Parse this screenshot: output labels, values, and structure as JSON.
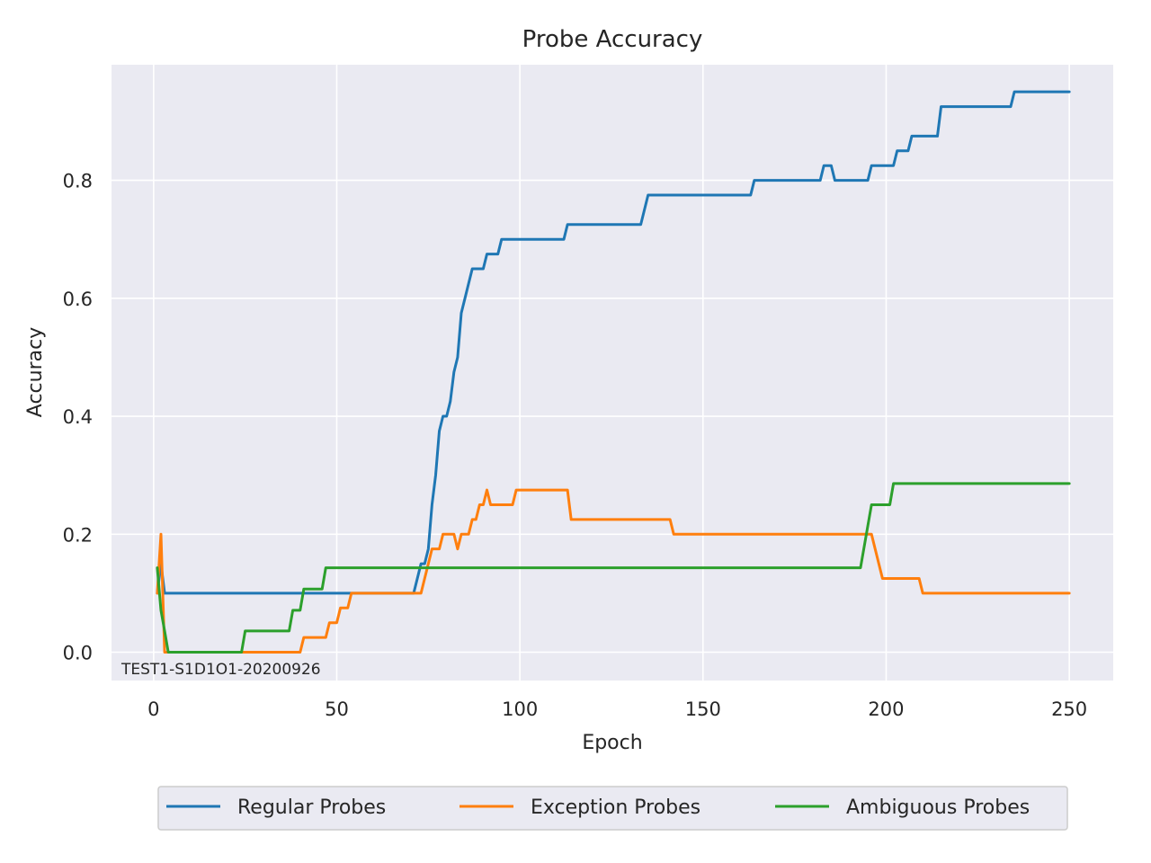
{
  "chart_data": {
    "type": "line",
    "title": "Probe Accuracy",
    "xlabel": "Epoch",
    "ylabel": "Accuracy",
    "xlim": [
      -11.5,
      262
    ],
    "ylim": [
      -0.048,
      0.996
    ],
    "xticks": [
      0,
      50,
      100,
      150,
      200,
      250
    ],
    "yticks": [
      0.0,
      0.2,
      0.4,
      0.6,
      0.8
    ],
    "grid": true,
    "legend_position": "bottom-center",
    "annotation": "TEST1-S1D1O1-20200926",
    "series": [
      {
        "name": "Regular Probes",
        "color": "#1f77b4",
        "points": [
          [
            1,
            0.1
          ],
          [
            2,
            0.15
          ],
          [
            3,
            0.1
          ],
          [
            71,
            0.1
          ],
          [
            72,
            0.125
          ],
          [
            73,
            0.15
          ],
          [
            74,
            0.15
          ],
          [
            75,
            0.175
          ],
          [
            76,
            0.25
          ],
          [
            77,
            0.3
          ],
          [
            78,
            0.375
          ],
          [
            79,
            0.4
          ],
          [
            80,
            0.4
          ],
          [
            81,
            0.425
          ],
          [
            82,
            0.475
          ],
          [
            83,
            0.5
          ],
          [
            84,
            0.575
          ],
          [
            85,
            0.6
          ],
          [
            86,
            0.625
          ],
          [
            87,
            0.65
          ],
          [
            90,
            0.65
          ],
          [
            91,
            0.675
          ],
          [
            94,
            0.675
          ],
          [
            95,
            0.7
          ],
          [
            112,
            0.7
          ],
          [
            113,
            0.725
          ],
          [
            133,
            0.725
          ],
          [
            135,
            0.775
          ],
          [
            163,
            0.775
          ],
          [
            164,
            0.8
          ],
          [
            182,
            0.8
          ],
          [
            183,
            0.825
          ],
          [
            185,
            0.825
          ],
          [
            186,
            0.8
          ],
          [
            195,
            0.8
          ],
          [
            196,
            0.825
          ],
          [
            202,
            0.825
          ],
          [
            203,
            0.85
          ],
          [
            206,
            0.85
          ],
          [
            207,
            0.875
          ],
          [
            214,
            0.875
          ],
          [
            215,
            0.925
          ],
          [
            234,
            0.925
          ],
          [
            235,
            0.95
          ],
          [
            250,
            0.95
          ]
        ]
      },
      {
        "name": "Exception Probes",
        "color": "#ff7f0e",
        "points": [
          [
            1,
            0.1
          ],
          [
            2,
            0.2
          ],
          [
            3,
            0.0
          ],
          [
            40,
            0.0
          ],
          [
            41,
            0.025
          ],
          [
            47,
            0.025
          ],
          [
            48,
            0.05
          ],
          [
            50,
            0.05
          ],
          [
            51,
            0.075
          ],
          [
            53,
            0.075
          ],
          [
            54,
            0.1
          ],
          [
            73,
            0.1
          ],
          [
            74,
            0.125
          ],
          [
            75,
            0.15
          ],
          [
            76,
            0.175
          ],
          [
            78,
            0.175
          ],
          [
            79,
            0.2
          ],
          [
            82,
            0.2
          ],
          [
            83,
            0.175
          ],
          [
            84,
            0.2
          ],
          [
            86,
            0.2
          ],
          [
            87,
            0.225
          ],
          [
            88,
            0.225
          ],
          [
            89,
            0.25
          ],
          [
            90,
            0.25
          ],
          [
            91,
            0.275
          ],
          [
            92,
            0.25
          ],
          [
            98,
            0.25
          ],
          [
            99,
            0.275
          ],
          [
            113,
            0.275
          ],
          [
            114,
            0.225
          ],
          [
            141,
            0.225
          ],
          [
            142,
            0.2
          ],
          [
            196,
            0.2
          ],
          [
            199,
            0.125
          ],
          [
            209,
            0.125
          ],
          [
            210,
            0.1
          ],
          [
            250,
            0.1
          ]
        ]
      },
      {
        "name": "Ambiguous Probes",
        "color": "#2ca02c",
        "points": [
          [
            1,
            0.143
          ],
          [
            2,
            0.071
          ],
          [
            3,
            0.036
          ],
          [
            4,
            0.0
          ],
          [
            24,
            0.0
          ],
          [
            25,
            0.036
          ],
          [
            37,
            0.036
          ],
          [
            38,
            0.071
          ],
          [
            40,
            0.071
          ],
          [
            41,
            0.107
          ],
          [
            46,
            0.107
          ],
          [
            47,
            0.143
          ],
          [
            193,
            0.143
          ],
          [
            196,
            0.25
          ],
          [
            201,
            0.25
          ],
          [
            202,
            0.286
          ],
          [
            250,
            0.286
          ]
        ]
      }
    ]
  }
}
